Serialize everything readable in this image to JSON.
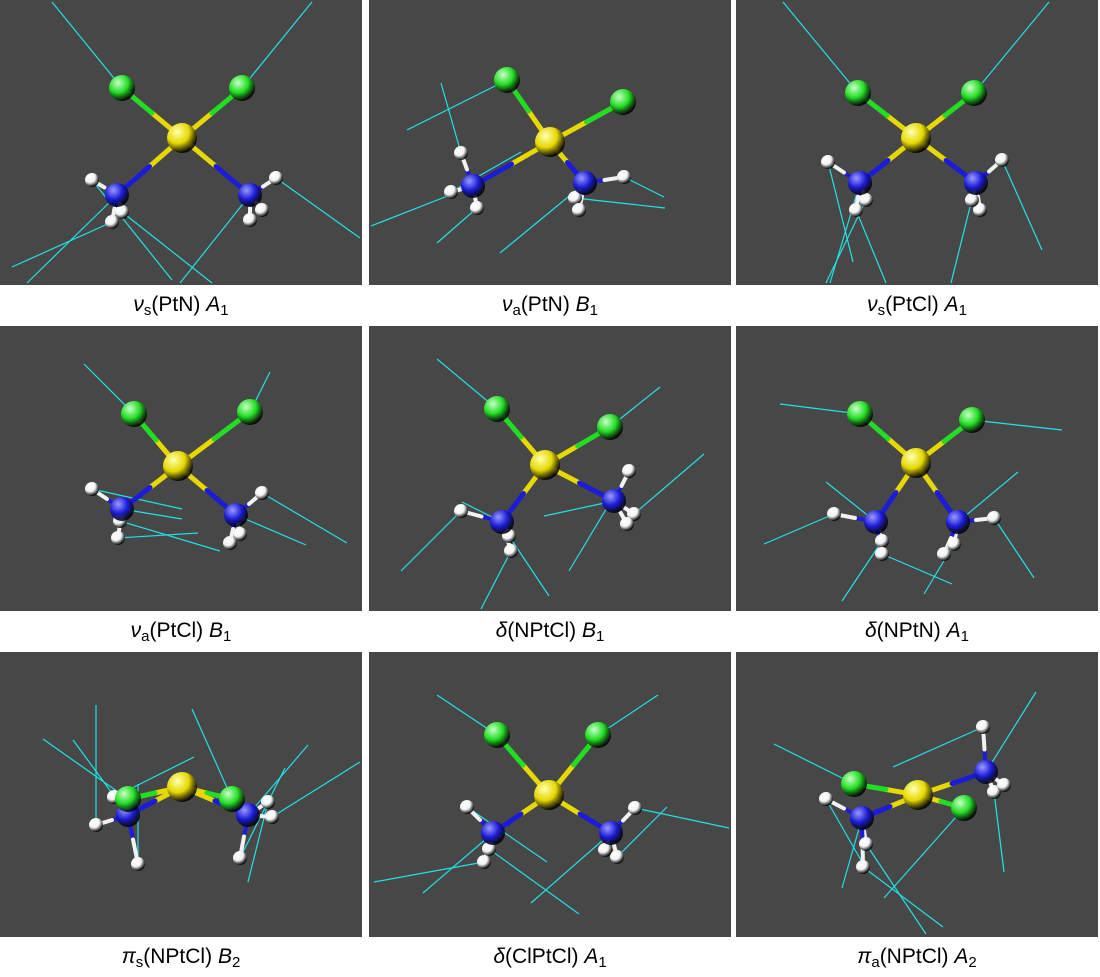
{
  "colors": {
    "background": "#474747",
    "platinum": "#e6d800",
    "chlorine": "#22dd22",
    "nitrogen": "#1c1cd8",
    "hydrogen": "#f2f2f2",
    "displacement_vector": "#22e0e8"
  },
  "panels": [
    {
      "symbol": "ν",
      "sub": "s",
      "coord": "(PtN)",
      "irrep": "A",
      "irrep_sub": "1"
    },
    {
      "symbol": "ν",
      "sub": "a",
      "coord": "(PtN)",
      "irrep": "B",
      "irrep_sub": "1"
    },
    {
      "symbol": "ν",
      "sub": "s",
      "coord": "(PtCl)",
      "irrep": "A",
      "irrep_sub": "1"
    },
    {
      "symbol": "ν",
      "sub": "a",
      "coord": "(PtCl)",
      "irrep": "B",
      "irrep_sub": "1"
    },
    {
      "symbol": "δ",
      "sub": "",
      "coord": "(NPtCl)",
      "irrep": "B",
      "irrep_sub": "1"
    },
    {
      "symbol": "δ",
      "sub": "",
      "coord": "(NPtN)",
      "irrep": "A",
      "irrep_sub": "1"
    },
    {
      "symbol": "π",
      "sub": "s",
      "coord": "(NPtCl)",
      "irrep": "B",
      "irrep_sub": "2"
    },
    {
      "symbol": "δ",
      "sub": "",
      "coord": "(ClPtCl)",
      "irrep": "A",
      "irrep_sub": "1"
    },
    {
      "symbol": "π",
      "sub": "a",
      "coord": "(NPtCl)",
      "irrep": "A",
      "irrep_sub": "2"
    }
  ]
}
